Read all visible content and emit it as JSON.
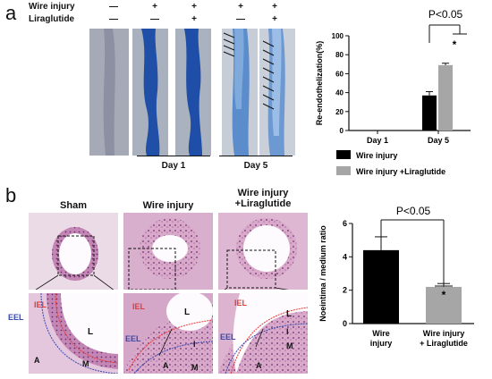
{
  "panel_a": {
    "letter": "a",
    "row_labels": [
      "Wire injury",
      "Liraglutide"
    ],
    "treatment_signs": [
      [
        "—",
        "—"
      ],
      [
        "+",
        "—"
      ],
      [
        "+",
        "+"
      ],
      [
        "+",
        "—"
      ],
      [
        "+",
        "+"
      ]
    ],
    "day_labels": [
      "Day 1",
      "Day 5"
    ]
  },
  "panel_b": {
    "letter": "b",
    "image_titles": [
      "Sham",
      "Wire injury",
      "Wire injury\n+Liraglutide"
    ],
    "histology_labels": {
      "iel": "IEL",
      "eel": "EEL",
      "lumen": "L",
      "intima": "I",
      "media": "M",
      "adventitia": "A"
    }
  },
  "chart_data": [
    {
      "type": "bar",
      "ylabel": "Re-endothelization(%)",
      "categories": [
        "Day 1",
        "Day 5"
      ],
      "series": [
        {
          "name": "Wire injury",
          "values": [
            0,
            37
          ],
          "errors": [
            0,
            4
          ],
          "color": "#000000"
        },
        {
          "name": "Wire injury +Liraglutide",
          "values": [
            0,
            69
          ],
          "errors": [
            0,
            2
          ],
          "color": "#a6a6a6"
        }
      ],
      "ylim": [
        0,
        100
      ],
      "annotation": "P<0.05",
      "star": "*",
      "legend_position": "bottom"
    },
    {
      "type": "bar",
      "ylabel": "Noeintima / medium ratio",
      "categories": [
        "Wire injury",
        "Wire injury + Liraglutide"
      ],
      "values": [
        4.4,
        2.2
      ],
      "errors": [
        0.8,
        0.2
      ],
      "colors": [
        "#000000",
        "#a6a6a6"
      ],
      "ylim": [
        0,
        6
      ],
      "annotation": "P<0.05",
      "star": "*"
    }
  ]
}
